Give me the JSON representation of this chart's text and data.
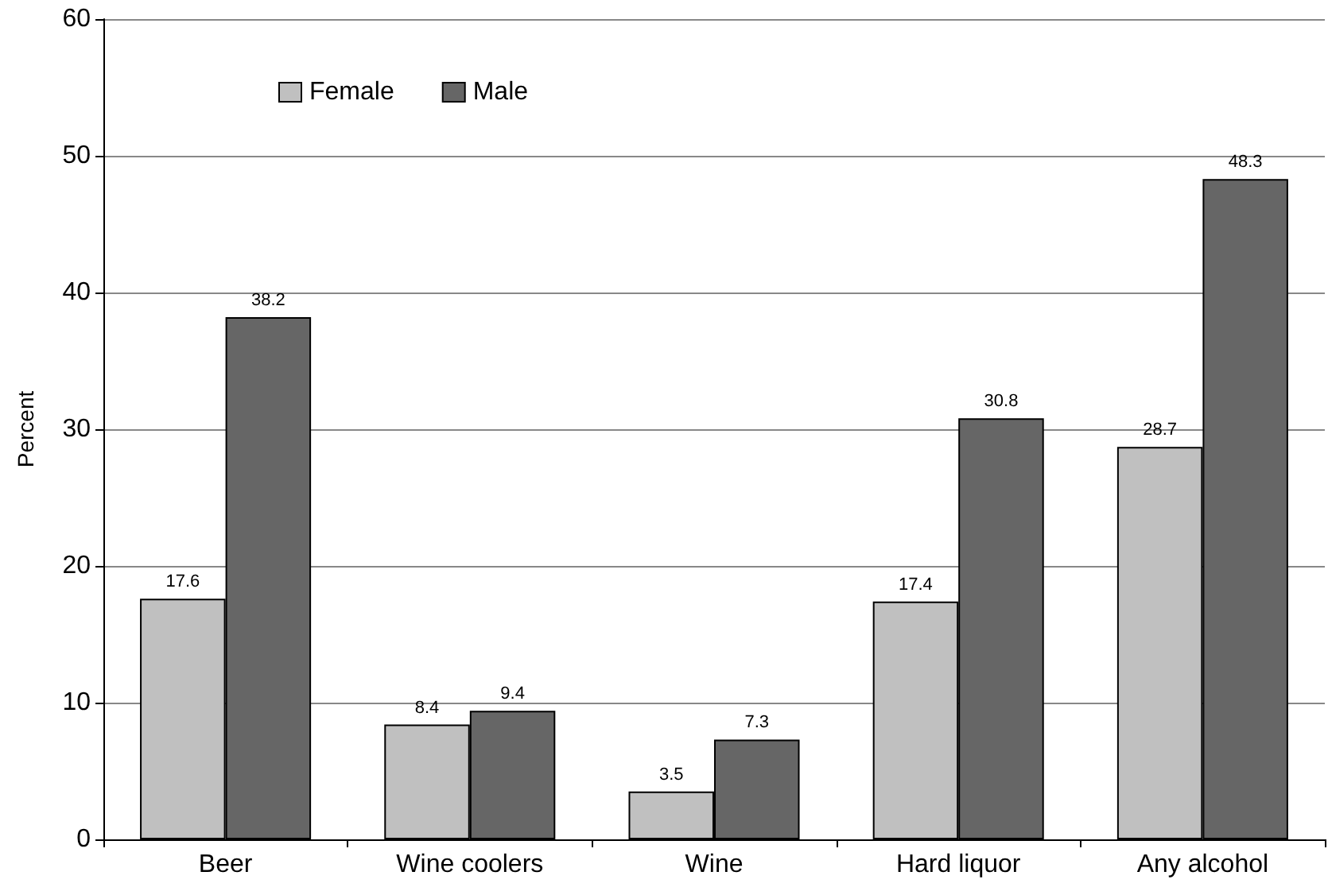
{
  "chart_data": {
    "type": "bar",
    "ylabel": "Percent",
    "categories": [
      "Beer",
      "Wine coolers",
      "Wine",
      "Hard liquor",
      "Any alcohol"
    ],
    "series": [
      {
        "name": "Female",
        "color": "#c0c0c0",
        "values": [
          17.6,
          8.4,
          3.5,
          17.4,
          28.7
        ]
      },
      {
        "name": "Male",
        "color": "#666666",
        "values": [
          38.2,
          9.4,
          7.3,
          30.8,
          48.3
        ]
      }
    ],
    "ylim": [
      0,
      60
    ],
    "yticks": [
      0,
      10,
      20,
      30,
      40,
      50,
      60
    ],
    "grid": "y",
    "legend": "top left",
    "data_labels": true
  }
}
